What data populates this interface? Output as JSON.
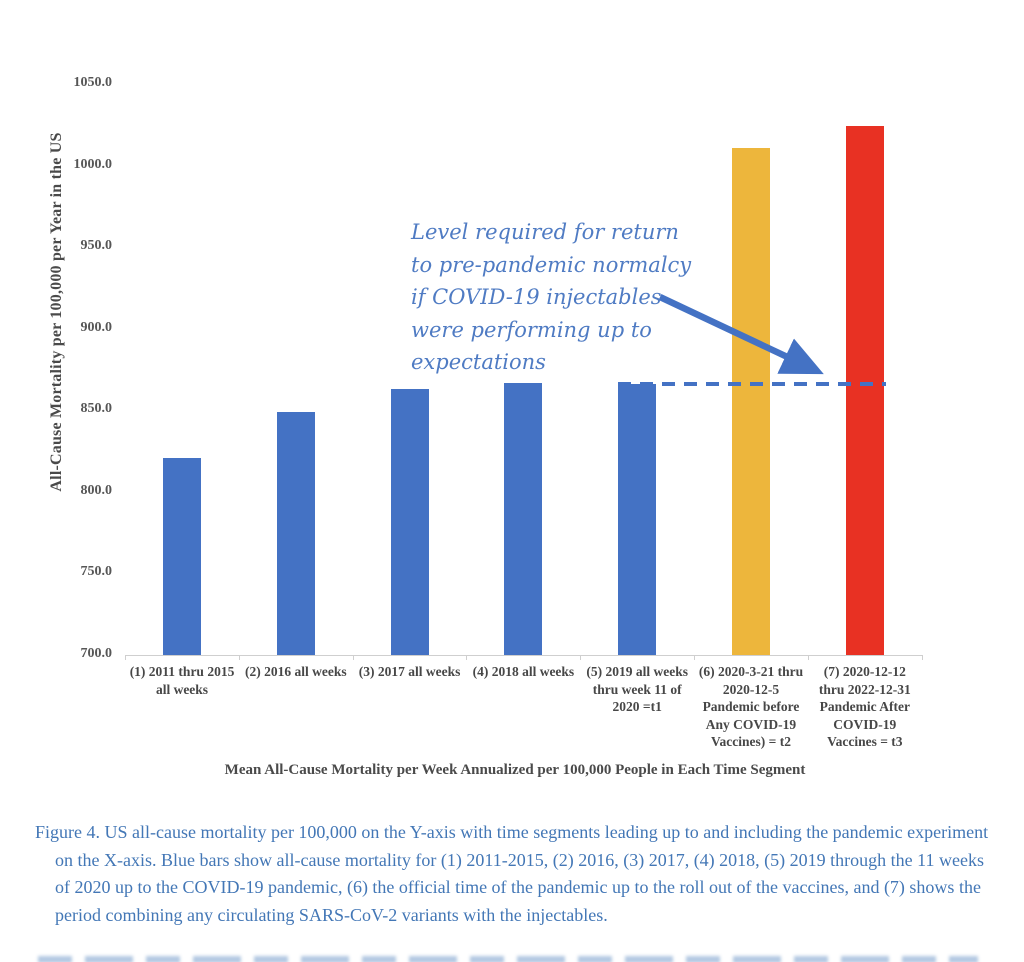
{
  "figure": {
    "caption": "Figure 4. US all-cause mortality per 100,000 on the Y-axis with time segments leading up to and including the pandemic experiment on the X-axis. Blue bars show all-cause mortality for (1) 2011-2015, (2) 2016, (3) 2017, (4) 2018, (5) 2019 through the 11 weeks of 2020 up to the COVID-19 pandemic, (6) the official time of the pandemic up to the roll out of the vaccines, and (7) shows the period combining any circulating SARS-CoV-2 variants with the injectables.",
    "caption_color": "#4377b6"
  },
  "chart_data": {
    "type": "bar",
    "title": "",
    "xlabel": "Mean All-Cause Mortality per Week Annualized per 100,000 People in Each Time Segment",
    "ylabel": "All-Cause Mortality per 100,000 per Year in the US",
    "ylim": [
      700,
      1050
    ],
    "yticks": [
      700,
      750,
      800,
      850,
      900,
      950,
      1000,
      1050
    ],
    "ytick_decimals": 1,
    "grid": false,
    "legend": false,
    "categories": [
      [
        "(1) 2011 thru 2015",
        "all weeks"
      ],
      [
        "(2) 2016 all weeks"
      ],
      [
        "(3) 2017 all weeks"
      ],
      [
        "(4) 2018 all weeks"
      ],
      [
        "(5) 2019 all weeks",
        "thru week 11 of",
        "2020 =t1"
      ],
      [
        "(6) 2020-3-21 thru",
        "2020-12-5",
        "Pandemic before",
        "Any COVID-19",
        "Vaccines) = t2"
      ],
      [
        "(7) 2020-12-12",
        "thru 2022-12-31",
        "Pandemic After",
        "COVID-19",
        "Vaccines = t3"
      ]
    ],
    "values": [
      821,
      849,
      863,
      867,
      866,
      1011,
      1024
    ],
    "bar_colors": [
      "#4472C4",
      "#4472C4",
      "#4472C4",
      "#4472C4",
      "#4472C4",
      "#EDB63C",
      "#E83123"
    ],
    "dashed_line": {
      "value": 866,
      "color": "#4472C4"
    },
    "annotation": {
      "lines": [
        "Level required for return",
        "to pre-pandemic normalcy",
        "if  COVID-19 injectables",
        "were performing up to",
        "expectations"
      ],
      "color": "#4f7bc3",
      "arrow_color": "#4472C4"
    }
  }
}
